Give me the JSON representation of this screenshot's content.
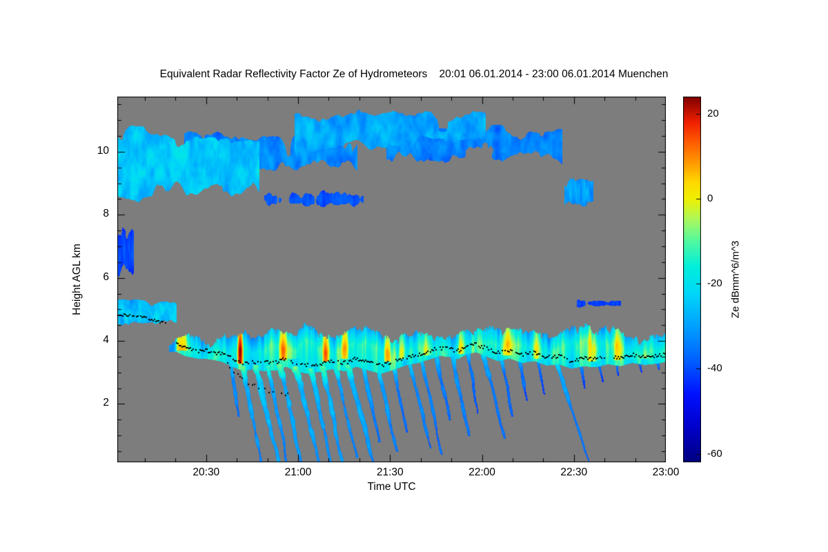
{
  "chart_data": {
    "type": "heatmap",
    "title": "Equivalent Radar Reflectivity Factor Ze of Hydrometeors    20:01 06.01.2014 - 23:00 06.01.2014 Muenchen",
    "xlabel": "Time UTC",
    "ylabel": "Height AGL km",
    "colorbar_label": "Ze dBmm^6/m^3",
    "x_axis": {
      "start_label": "20:01",
      "end_label": "23:00",
      "start_min": 0,
      "end_min": 179,
      "major_ticks": [
        {
          "t": 29,
          "label": "20:30"
        },
        {
          "t": 59,
          "label": "21:00"
        },
        {
          "t": 89,
          "label": "21:30"
        },
        {
          "t": 119,
          "label": "22:00"
        },
        {
          "t": 149,
          "label": "22:30"
        },
        {
          "t": 179,
          "label": "23:00"
        }
      ],
      "minor_start_min": 9,
      "minor_step_min": 10
    },
    "y_axis": {
      "min_km": 0.15,
      "max_km": 11.75,
      "major_ticks": [
        2,
        4,
        6,
        8,
        10
      ],
      "minor_step_km": 0.5
    },
    "colorbar": {
      "min": -62,
      "max": 24,
      "ticks": [
        20,
        0,
        -20,
        -40,
        -60
      ]
    },
    "colormap": [
      [
        -62,
        "#000080"
      ],
      [
        -54,
        "#0000C8"
      ],
      [
        -46,
        "#0010FF"
      ],
      [
        -38,
        "#0060FF"
      ],
      [
        -30,
        "#00A0FF"
      ],
      [
        -22,
        "#00D8F8"
      ],
      [
        -16,
        "#00EEDC"
      ],
      [
        -10,
        "#50F8A0"
      ],
      [
        -5,
        "#A8F860"
      ],
      [
        0,
        "#F0F000"
      ],
      [
        4,
        "#FFD800"
      ],
      [
        8,
        "#FFA000"
      ],
      [
        13,
        "#FF6000"
      ],
      [
        18,
        "#F02000"
      ],
      [
        24,
        "#800000"
      ]
    ],
    "no_signal_color": "#7d7d7d",
    "upper_bands": {
      "fields": [
        "t0",
        "t1",
        "bot0",
        "bot1",
        "top0",
        "top1",
        "val",
        "amp",
        "cov",
        "sx",
        "sy",
        "seed"
      ],
      "rows": [
        [
          -3,
          46,
          8.15,
          8.6,
          10.9,
          10.5,
          -27,
          9,
          0.28,
          0.16,
          0.7,
          11
        ],
        [
          22,
          78,
          9.3,
          9.3,
          10.7,
          10.7,
          -35,
          7,
          0.42,
          0.2,
          0.9,
          23
        ],
        [
          58,
          120,
          9.95,
          10.2,
          11.35,
          11.4,
          -31,
          8,
          0.36,
          0.18,
          0.8,
          37
        ],
        [
          88,
          145,
          9.55,
          9.6,
          11.0,
          10.9,
          -36,
          7,
          0.44,
          0.2,
          0.9,
          53
        ],
        [
          146,
          155,
          8.25,
          8.3,
          9.3,
          9.2,
          -33,
          7,
          0.25,
          0.5,
          0.8,
          67
        ],
        [
          -3,
          5,
          6.0,
          6.1,
          7.7,
          7.6,
          -43,
          5,
          0.3,
          0.6,
          0.7,
          79
        ],
        [
          -3,
          19,
          4.5,
          4.55,
          5.35,
          5.3,
          -27,
          8,
          0.15,
          0.3,
          1.2,
          97
        ],
        [
          48,
          80,
          8.2,
          8.2,
          8.8,
          8.8,
          -42,
          4,
          0.6,
          0.4,
          1.0,
          113
        ],
        [
          150,
          164,
          5.05,
          5.1,
          5.35,
          5.3,
          -44,
          3,
          0.42,
          0.6,
          1.5,
          131
        ]
      ]
    },
    "main_band": {
      "t_start": 17,
      "top_base": 4.32,
      "top_amp": 1.1,
      "core_val": -17,
      "striation_amp": 38
    },
    "hot_streaks": {
      "fields": [
        "t",
        "h0",
        "h1",
        "half_width_min",
        "boost"
      ],
      "rows": [
        [
          21,
          3.85,
          4.3,
          2.2,
          22
        ],
        [
          40,
          3.45,
          4.55,
          1.2,
          28
        ],
        [
          54,
          3.55,
          4.7,
          1.4,
          22
        ],
        [
          57,
          3.6,
          4.6,
          2.6,
          8
        ],
        [
          68,
          3.5,
          4.8,
          1.3,
          26
        ],
        [
          74,
          3.6,
          4.9,
          1.5,
          18
        ],
        [
          88,
          3.5,
          5.0,
          1.2,
          26
        ],
        [
          93,
          3.6,
          4.8,
          1.2,
          18
        ],
        [
          101,
          3.7,
          4.6,
          2.0,
          12
        ],
        [
          112,
          3.75,
          4.45,
          1.5,
          15
        ],
        [
          127,
          3.7,
          4.4,
          2.0,
          15
        ],
        [
          137,
          3.6,
          4.3,
          1.8,
          12
        ],
        [
          155,
          3.5,
          4.35,
          2.0,
          15
        ],
        [
          163,
          3.55,
          4.4,
          1.5,
          12
        ],
        [
          172,
          3.6,
          4.4,
          1.5,
          12
        ]
      ]
    },
    "fall_streaks": {
      "fields": [
        "t",
        "h_bottom",
        "width_min",
        "drift_min_per_km",
        "val",
        "top_boost"
      ],
      "rows": [
        [
          37,
          1.6,
          2.0,
          1.5,
          -33,
          8
        ],
        [
          41,
          0.15,
          2.2,
          2.0,
          -30,
          16
        ],
        [
          45,
          0.15,
          2.6,
          2.4,
          -28,
          16
        ],
        [
          49,
          0.15,
          2.0,
          2.0,
          -31,
          16
        ],
        [
          53,
          0.15,
          2.4,
          2.2,
          -29,
          16
        ],
        [
          58,
          0.15,
          2.8,
          2.6,
          -28,
          16
        ],
        [
          63,
          0.15,
          2.2,
          2.2,
          -30,
          16
        ],
        [
          67,
          0.15,
          2.4,
          2.0,
          -29,
          16
        ],
        [
          71,
          0.3,
          2.0,
          2.4,
          -31,
          14
        ],
        [
          75,
          0.15,
          2.6,
          2.8,
          -30,
          14
        ],
        [
          80,
          0.8,
          2.0,
          2.2,
          -33,
          10
        ],
        [
          85,
          0.5,
          2.2,
          2.4,
          -32,
          10
        ],
        [
          90,
          1.1,
          2.0,
          2.0,
          -34,
          10
        ],
        [
          95,
          0.6,
          2.0,
          2.6,
          -33,
          10
        ],
        [
          99,
          0.4,
          1.8,
          2.2,
          -34,
          8
        ],
        [
          104,
          1.5,
          2.0,
          2.0,
          -35,
          8
        ],
        [
          109,
          1.0,
          2.0,
          2.2,
          -34,
          8
        ],
        [
          114,
          1.7,
          1.8,
          2.0,
          -36,
          8
        ],
        [
          119,
          0.9,
          2.0,
          2.6,
          -34,
          8
        ],
        [
          125,
          1.6,
          1.8,
          2.2,
          -36,
          8
        ],
        [
          131,
          2.1,
          1.8,
          2.0,
          -37,
          6
        ],
        [
          137,
          2.3,
          1.6,
          2.0,
          -38,
          6
        ],
        [
          143,
          0.2,
          1.8,
          3.4,
          -33,
          8
        ],
        [
          151,
          2.5,
          1.6,
          2.0,
          -39,
          6
        ],
        [
          157,
          2.7,
          1.5,
          2.0,
          -40,
          6
        ],
        [
          163,
          2.9,
          1.5,
          1.8,
          -40,
          6
        ],
        [
          170,
          3.0,
          1.4,
          1.6,
          -41,
          5
        ],
        [
          176,
          3.1,
          1.3,
          1.5,
          -41,
          5
        ]
      ]
    },
    "melting_line": {
      "left_segment": [
        [
          0,
          4.84
        ],
        [
          5,
          4.8
        ],
        [
          9,
          4.74
        ],
        [
          13,
          4.64
        ],
        [
          16,
          4.56
        ]
      ],
      "main_segment": [
        [
          19,
          3.92
        ],
        [
          22,
          3.78
        ],
        [
          26,
          3.7
        ],
        [
          30,
          3.68
        ],
        [
          34,
          3.6
        ],
        [
          38,
          3.42
        ],
        [
          41,
          3.3
        ],
        [
          44,
          3.36
        ],
        [
          48,
          3.3
        ],
        [
          52,
          3.33
        ],
        [
          55,
          3.44
        ],
        [
          58,
          3.3
        ],
        [
          62,
          3.22
        ],
        [
          66,
          3.28
        ],
        [
          70,
          3.36
        ],
        [
          74,
          3.3
        ],
        [
          78,
          3.44
        ],
        [
          82,
          3.32
        ],
        [
          86,
          3.22
        ],
        [
          90,
          3.34
        ],
        [
          94,
          3.48
        ],
        [
          98,
          3.56
        ],
        [
          102,
          3.68
        ],
        [
          105,
          3.78
        ],
        [
          108,
          3.76
        ],
        [
          111,
          3.68
        ],
        [
          114,
          3.84
        ],
        [
          117,
          3.9
        ],
        [
          120,
          3.78
        ],
        [
          124,
          3.62
        ],
        [
          128,
          3.7
        ],
        [
          132,
          3.56
        ],
        [
          136,
          3.62
        ],
        [
          140,
          3.48
        ],
        [
          144,
          3.52
        ],
        [
          148,
          3.38
        ],
        [
          152,
          3.46
        ],
        [
          156,
          3.42
        ],
        [
          160,
          3.52
        ],
        [
          164,
          3.46
        ],
        [
          168,
          3.56
        ],
        [
          172,
          3.5
        ],
        [
          176,
          3.54
        ],
        [
          179,
          3.6
        ]
      ],
      "secondary": [
        [
          36,
          3.25
        ],
        [
          38,
          3.05
        ],
        [
          40,
          2.9
        ],
        [
          42,
          2.75
        ],
        [
          44,
          2.6
        ],
        [
          46,
          2.5
        ],
        [
          48,
          2.42
        ],
        [
          51,
          2.36
        ],
        [
          54,
          2.3
        ],
        [
          57,
          2.28
        ],
        [
          60,
          2.3
        ]
      ]
    }
  }
}
